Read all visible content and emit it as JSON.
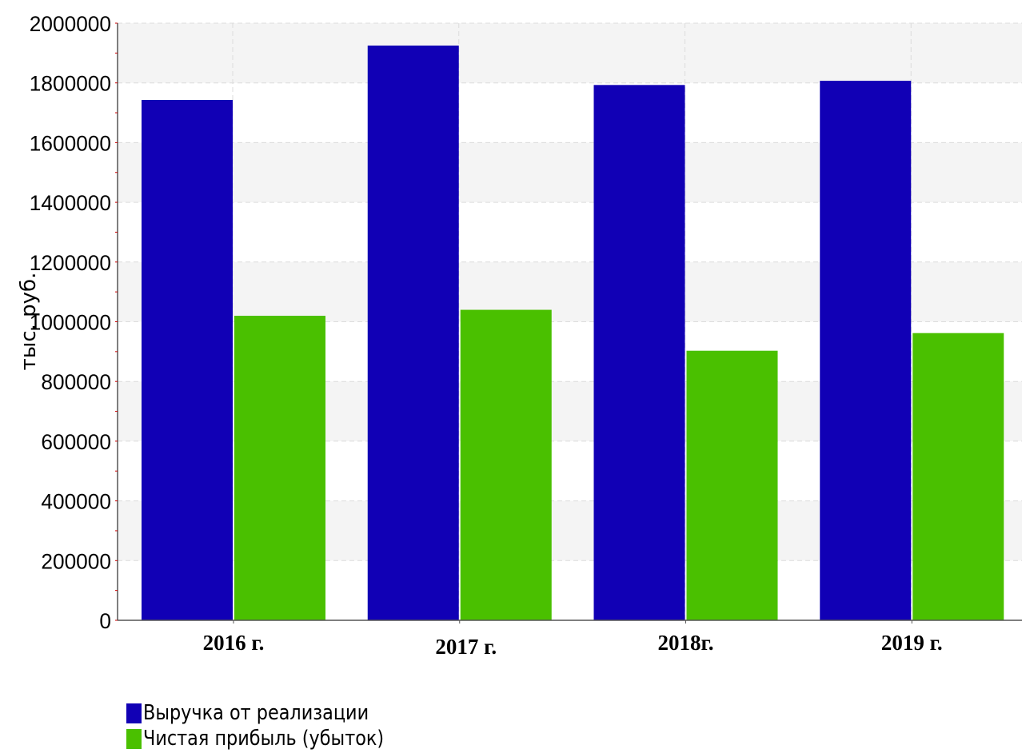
{
  "chart_data": {
    "type": "bar",
    "categories": [
      "2016 г.",
      "2017 г.",
      "2018г.",
      "2019 г."
    ],
    "series": [
      {
        "name": "Выручка от реализации",
        "color": "#1100b5",
        "values": [
          1743000,
          1925000,
          1793000,
          1807000
        ]
      },
      {
        "name": "Чистая прибыль (убыток)",
        "color": "#4ac000",
        "values": [
          1020000,
          1040000,
          903000,
          962000
        ]
      }
    ],
    "ylabel": "тыс. руб.",
    "xlabel": "",
    "ylim": [
      0,
      2000000
    ],
    "yticks": [
      "0",
      "200000",
      "400000",
      "600000",
      "800000",
      "1000000",
      "1200000",
      "1400000",
      "1600000",
      "1800000",
      "2000000"
    ],
    "grid": true,
    "legend_position": "bottom-left"
  }
}
